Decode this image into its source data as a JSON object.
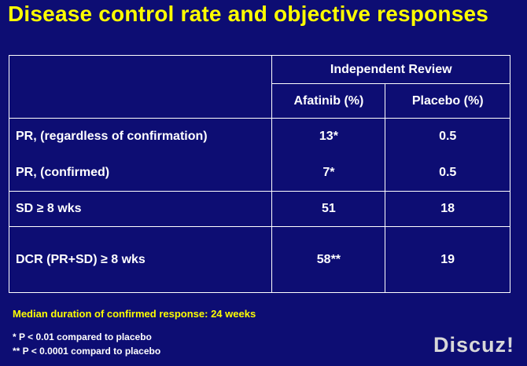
{
  "title": "Disease control rate and objective responses",
  "table": {
    "group_header": "Independent Review",
    "col_afatinib": "Afatinib (%)",
    "col_placebo": "Placebo (%)",
    "rows": [
      {
        "label": "PR, (regardless of confirmation)",
        "afatinib": "13*",
        "placebo": "0.5"
      },
      {
        "label": "PR, (confirmed)",
        "afatinib": "7*",
        "placebo": "0.5"
      },
      {
        "label": "SD ≥ 8 wks",
        "afatinib": "51",
        "placebo": "18"
      },
      {
        "label": "DCR (PR+SD) ≥ 8 wks",
        "afatinib": "58**",
        "placebo": "19"
      }
    ]
  },
  "median_note": "Median duration of confirmed response:  24 weeks",
  "footnotes": [
    "* P < 0.01 compared to placebo",
    "** P < 0.0001 compard to placebo"
  ],
  "watermark": "Discuz!"
}
